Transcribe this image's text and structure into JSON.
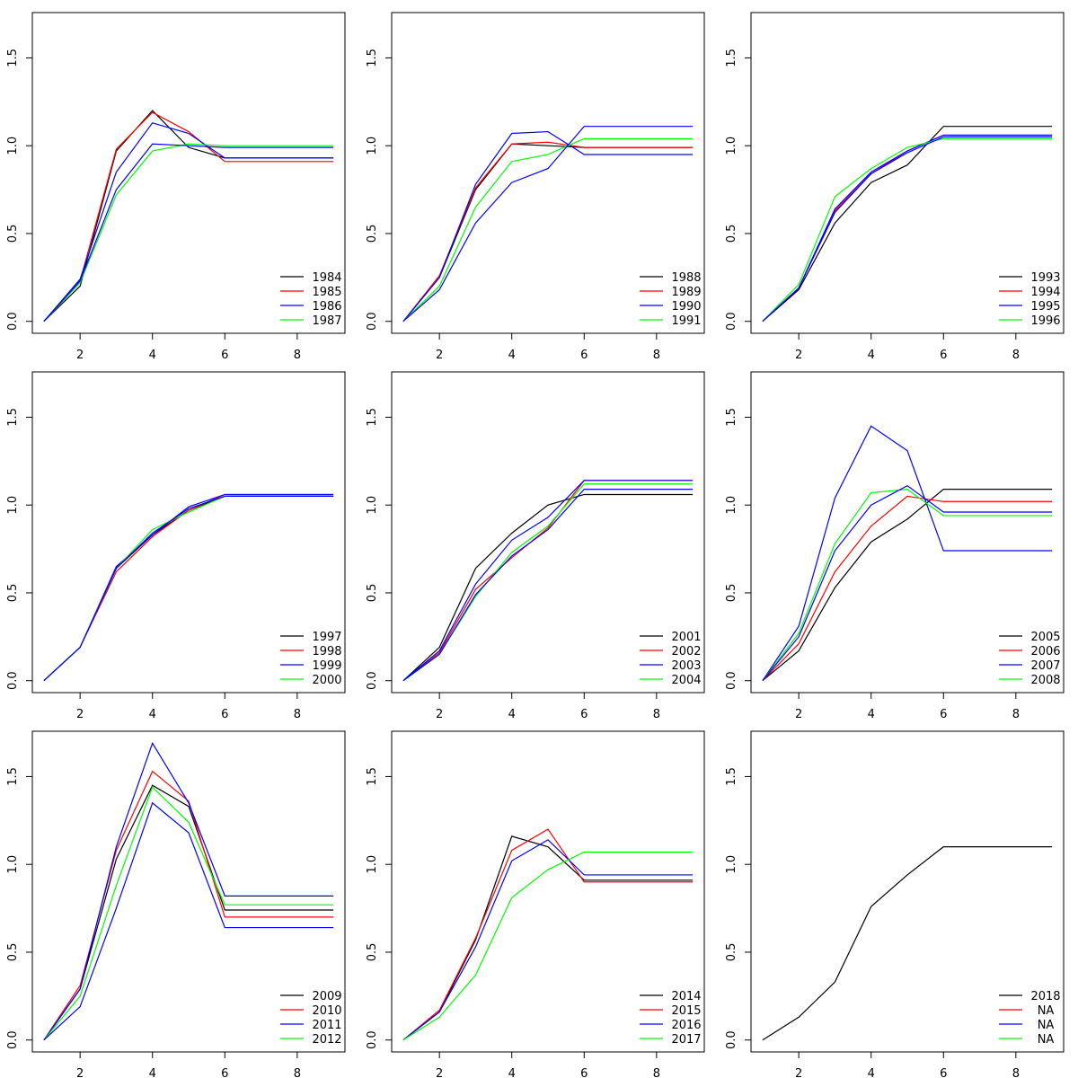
{
  "chart_data": [
    {
      "type": "line",
      "x": [
        1,
        2,
        3,
        4,
        5,
        6,
        7,
        8,
        9
      ],
      "xlim": [
        0.68,
        9.32
      ],
      "ylim": [
        -0.068,
        1.758
      ],
      "xticks": [
        2,
        4,
        6,
        8
      ],
      "yticks": [
        {
          "value": 0,
          "label": "0.0"
        },
        0.5,
        {
          "value": 1,
          "label": "1.0"
        },
        1.5
      ],
      "legend": "bottomright",
      "series": [
        {
          "name": "1984",
          "color": "#000000",
          "values": [
            0,
            0.2,
            0.97,
            1.2,
            0.99,
            0.93,
            0.93,
            0.93,
            0.93
          ]
        },
        {
          "name": "1985",
          "color": "#ff0000",
          "values": [
            0,
            0.23,
            0.98,
            1.19,
            1.08,
            0.91,
            0.91,
            0.91,
            0.91
          ]
        },
        {
          "name": "1986",
          "color": "#0000ff",
          "values": [
            0,
            0.24,
            0.85,
            1.13,
            1.07,
            0.93,
            0.93,
            0.93,
            0.93
          ]
        },
        {
          "name": "1987",
          "color": "#00ff00",
          "values": [
            0,
            0.22,
            0.72,
            0.97,
            1.01,
            1.0,
            1.0,
            1.0,
            1.0
          ]
        },
        {
          "color": "#0000ff",
          "values": [
            0,
            0.23,
            0.75,
            1.01,
            1.0,
            0.99,
            0.99,
            0.99,
            0.99
          ]
        }
      ]
    },
    {
      "type": "line",
      "x": [
        1,
        2,
        3,
        4,
        5,
        6,
        7,
        8,
        9
      ],
      "xlim": [
        0.68,
        9.32
      ],
      "ylim": [
        -0.068,
        1.758
      ],
      "xticks": [
        2,
        4,
        6,
        8
      ],
      "yticks": [
        {
          "value": 0,
          "label": "0.0"
        },
        0.5,
        {
          "value": 1,
          "label": "1.0"
        },
        1.5
      ],
      "legend": "bottomright",
      "series": [
        {
          "name": "1988",
          "color": "#000000",
          "values": [
            0,
            0.25,
            0.75,
            1.01,
            1.0,
            0.99,
            0.99,
            0.99,
            0.99
          ]
        },
        {
          "name": "1989",
          "color": "#ff0000",
          "values": [
            0,
            0.26,
            0.76,
            1.01,
            1.02,
            0.99,
            0.99,
            0.99,
            0.99
          ]
        },
        {
          "name": "1990",
          "color": "#0000ff",
          "values": [
            0,
            0.25,
            0.78,
            1.07,
            1.08,
            0.95,
            0.95,
            0.95,
            0.95
          ]
        },
        {
          "name": "1991",
          "color": "#00ff00",
          "values": [
            0,
            0.2,
            0.65,
            0.91,
            0.95,
            1.04,
            1.04,
            1.04,
            1.04
          ]
        },
        {
          "color": "#0000ff",
          "values": [
            0,
            0.18,
            0.56,
            0.79,
            0.87,
            1.11,
            1.11,
            1.11,
            1.11
          ]
        }
      ]
    },
    {
      "type": "line",
      "x": [
        1,
        2,
        3,
        4,
        5,
        6,
        7,
        8,
        9
      ],
      "xlim": [
        0.68,
        9.32
      ],
      "ylim": [
        -0.068,
        1.758
      ],
      "xticks": [
        2,
        4,
        6,
        8
      ],
      "yticks": [
        {
          "value": 0,
          "label": "0.0"
        },
        0.5,
        {
          "value": 1,
          "label": "1.0"
        },
        1.5
      ],
      "legend": "bottomright",
      "series": [
        {
          "name": "1993",
          "color": "#000000",
          "values": [
            0,
            0.18,
            0.56,
            0.79,
            0.89,
            1.11,
            1.11,
            1.11,
            1.11
          ]
        },
        {
          "name": "1994",
          "color": "#ff0000",
          "values": [
            0,
            0.19,
            0.63,
            0.84,
            0.97,
            1.06,
            1.06,
            1.06,
            1.06
          ]
        },
        {
          "name": "1995",
          "color": "#0000ff",
          "values": [
            0,
            0.19,
            0.64,
            0.85,
            0.97,
            1.06,
            1.06,
            1.06,
            1.06
          ]
        },
        {
          "name": "1996",
          "color": "#00ff00",
          "values": [
            0,
            0.21,
            0.71,
            0.87,
            0.99,
            1.04,
            1.04,
            1.04,
            1.04
          ]
        },
        {
          "color": "#0000ff",
          "values": [
            0,
            0.19,
            0.62,
            0.84,
            0.96,
            1.05,
            1.05,
            1.05,
            1.05
          ]
        }
      ]
    },
    {
      "type": "line",
      "x": [
        1,
        2,
        3,
        4,
        5,
        6,
        7,
        8,
        9
      ],
      "xlim": [
        0.68,
        9.32
      ],
      "ylim": [
        -0.068,
        1.758
      ],
      "xticks": [
        2,
        4,
        6,
        8
      ],
      "yticks": [
        {
          "value": 0,
          "label": "0.0"
        },
        0.5,
        {
          "value": 1,
          "label": "1.0"
        },
        1.5
      ],
      "legend": "bottomright",
      "series": [
        {
          "name": "1997",
          "color": "#000000",
          "values": [
            0,
            0.19,
            0.64,
            0.83,
            0.97,
            1.05,
            1.05,
            1.05,
            1.05
          ]
        },
        {
          "name": "1998",
          "color": "#ff0000",
          "values": [
            0,
            0.19,
            0.62,
            0.82,
            0.97,
            1.06,
            1.06,
            1.06,
            1.06
          ]
        },
        {
          "name": "1999",
          "color": "#0000ff",
          "values": [
            0,
            0.19,
            0.65,
            0.83,
            0.99,
            1.06,
            1.06,
            1.06,
            1.06
          ]
        },
        {
          "name": "2000",
          "color": "#00ff00",
          "values": [
            0,
            0.19,
            0.64,
            0.86,
            0.96,
            1.05,
            1.05,
            1.05,
            1.05
          ]
        },
        {
          "color": "#0000ff",
          "values": [
            0,
            0.19,
            0.64,
            0.84,
            0.98,
            1.05,
            1.05,
            1.05,
            1.05
          ]
        }
      ]
    },
    {
      "type": "line",
      "x": [
        1,
        2,
        3,
        4,
        5,
        6,
        7,
        8,
        9
      ],
      "xlim": [
        0.68,
        9.32
      ],
      "ylim": [
        -0.068,
        1.758
      ],
      "xticks": [
        2,
        4,
        6,
        8
      ],
      "yticks": [
        {
          "value": 0,
          "label": "0.0"
        },
        0.5,
        {
          "value": 1,
          "label": "1.0"
        },
        1.5
      ],
      "legend": "bottomright",
      "series": [
        {
          "name": "2001",
          "color": "#000000",
          "values": [
            0,
            0.19,
            0.64,
            0.84,
            1.0,
            1.06,
            1.06,
            1.06,
            1.06
          ]
        },
        {
          "name": "2002",
          "color": "#ff0000",
          "values": [
            0,
            0.16,
            0.52,
            0.7,
            0.87,
            1.14,
            1.14,
            1.14,
            1.14
          ]
        },
        {
          "name": "2003",
          "color": "#0000ff",
          "values": [
            0,
            0.17,
            0.55,
            0.8,
            0.93,
            1.14,
            1.14,
            1.14,
            1.14
          ]
        },
        {
          "name": "2004",
          "color": "#00ff00",
          "values": [
            0,
            0.15,
            0.48,
            0.73,
            0.88,
            1.12,
            1.12,
            1.12,
            1.12
          ]
        },
        {
          "color": "#0000ff",
          "values": [
            0,
            0.15,
            0.49,
            0.71,
            0.86,
            1.09,
            1.09,
            1.09,
            1.09
          ]
        }
      ]
    },
    {
      "type": "line",
      "x": [
        1,
        2,
        3,
        4,
        5,
        6,
        7,
        8,
        9
      ],
      "xlim": [
        0.68,
        9.32
      ],
      "ylim": [
        -0.068,
        1.758
      ],
      "xticks": [
        2,
        4,
        6,
        8
      ],
      "yticks": [
        {
          "value": 0,
          "label": "0.0"
        },
        0.5,
        {
          "value": 1,
          "label": "1.0"
        },
        1.5
      ],
      "legend": "bottomright",
      "series": [
        {
          "name": "2005",
          "color": "#000000",
          "values": [
            0,
            0.17,
            0.53,
            0.79,
            0.92,
            1.09,
            1.09,
            1.09,
            1.09
          ]
        },
        {
          "name": "2006",
          "color": "#ff0000",
          "values": [
            0,
            0.21,
            0.62,
            0.88,
            1.05,
            1.02,
            1.02,
            1.02,
            1.02
          ]
        },
        {
          "name": "2007",
          "color": "#0000ff",
          "values": [
            0,
            0.31,
            1.04,
            1.45,
            1.31,
            0.74,
            0.74,
            0.74,
            0.74
          ]
        },
        {
          "name": "2008",
          "color": "#00ff00",
          "values": [
            0,
            0.27,
            0.78,
            1.07,
            1.09,
            0.94,
            0.94,
            0.94,
            0.94
          ]
        },
        {
          "color": "#0000ff",
          "values": [
            0,
            0.25,
            0.74,
            1.0,
            1.11,
            0.96,
            0.96,
            0.96,
            0.96
          ]
        }
      ]
    },
    {
      "type": "line",
      "x": [
        1,
        2,
        3,
        4,
        5,
        6,
        7,
        8,
        9
      ],
      "xlim": [
        0.68,
        9.32
      ],
      "ylim": [
        -0.068,
        1.758
      ],
      "xticks": [
        2,
        4,
        6,
        8
      ],
      "yticks": [
        {
          "value": 0,
          "label": "0.0"
        },
        0.5,
        {
          "value": 1,
          "label": "1.0"
        },
        1.5
      ],
      "legend": "bottomright",
      "series": [
        {
          "name": "2009",
          "color": "#000000",
          "values": [
            0,
            0.29,
            1.03,
            1.45,
            1.33,
            0.74,
            0.74,
            0.74,
            0.74
          ]
        },
        {
          "name": "2010",
          "color": "#ff0000",
          "values": [
            0,
            0.31,
            1.08,
            1.53,
            1.36,
            0.7,
            0.7,
            0.7,
            0.7
          ]
        },
        {
          "name": "2011",
          "color": "#0000ff",
          "values": [
            0,
            0.29,
            1.1,
            1.69,
            1.35,
            0.82,
            0.82,
            0.82,
            0.82
          ]
        },
        {
          "name": "2012",
          "color": "#00ff00",
          "values": [
            0,
            0.25,
            0.88,
            1.44,
            1.24,
            0.77,
            0.77,
            0.77,
            0.77
          ]
        },
        {
          "color": "#0000ff",
          "values": [
            0,
            0.19,
            0.75,
            1.35,
            1.18,
            0.64,
            0.64,
            0.64,
            0.64
          ]
        }
      ]
    },
    {
      "type": "line",
      "x": [
        1,
        2,
        3,
        4,
        5,
        6,
        7,
        8,
        9
      ],
      "xlim": [
        0.68,
        9.32
      ],
      "ylim": [
        -0.068,
        1.758
      ],
      "xticks": [
        2,
        4,
        6,
        8
      ],
      "yticks": [
        {
          "value": 0,
          "label": "0.0"
        },
        0.5,
        {
          "value": 1,
          "label": "1.0"
        },
        1.5
      ],
      "legend": "bottomright",
      "series": [
        {
          "name": "2014",
          "color": "#000000",
          "values": [
            0,
            0.16,
            0.57,
            1.16,
            1.1,
            0.91,
            0.91,
            0.91,
            0.91
          ]
        },
        {
          "name": "2015",
          "color": "#ff0000",
          "values": [
            0,
            0.17,
            0.58,
            1.08,
            1.2,
            0.9,
            0.9,
            0.9,
            0.9
          ]
        },
        {
          "name": "2016",
          "color": "#0000ff",
          "values": [
            0,
            0.16,
            0.53,
            1.02,
            1.14,
            0.94,
            0.94,
            0.94,
            0.94
          ]
        },
        {
          "name": "2017",
          "color": "#00ff00",
          "values": [
            0,
            0.13,
            0.37,
            0.81,
            0.97,
            1.07,
            1.07,
            1.07,
            1.07
          ]
        }
      ]
    },
    {
      "type": "line",
      "x": [
        1,
        2,
        3,
        4,
        5,
        6,
        7,
        8,
        9
      ],
      "xlim": [
        0.68,
        9.32
      ],
      "ylim": [
        -0.068,
        1.758
      ],
      "xticks": [
        2,
        4,
        6,
        8
      ],
      "yticks": [
        {
          "value": 0,
          "label": "0.0"
        },
        0.5,
        {
          "value": 1,
          "label": "1.0"
        },
        1.5
      ],
      "legend": "bottomright",
      "series": [
        {
          "name": "2018",
          "color": "#000000",
          "values": [
            0,
            0.13,
            0.33,
            0.76,
            0.94,
            1.1,
            1.1,
            1.1,
            1.1
          ]
        },
        {
          "name": "NA",
          "color": "#ff0000",
          "values": [
            null,
            null,
            null,
            null,
            null,
            null,
            null,
            null,
            null
          ]
        },
        {
          "name": "NA",
          "color": "#0000ff",
          "values": [
            null,
            null,
            null,
            null,
            null,
            null,
            null,
            null,
            null
          ]
        },
        {
          "name": "NA",
          "color": "#00ff00",
          "values": [
            null,
            null,
            null,
            null,
            null,
            null,
            null,
            null,
            null
          ]
        }
      ]
    }
  ]
}
